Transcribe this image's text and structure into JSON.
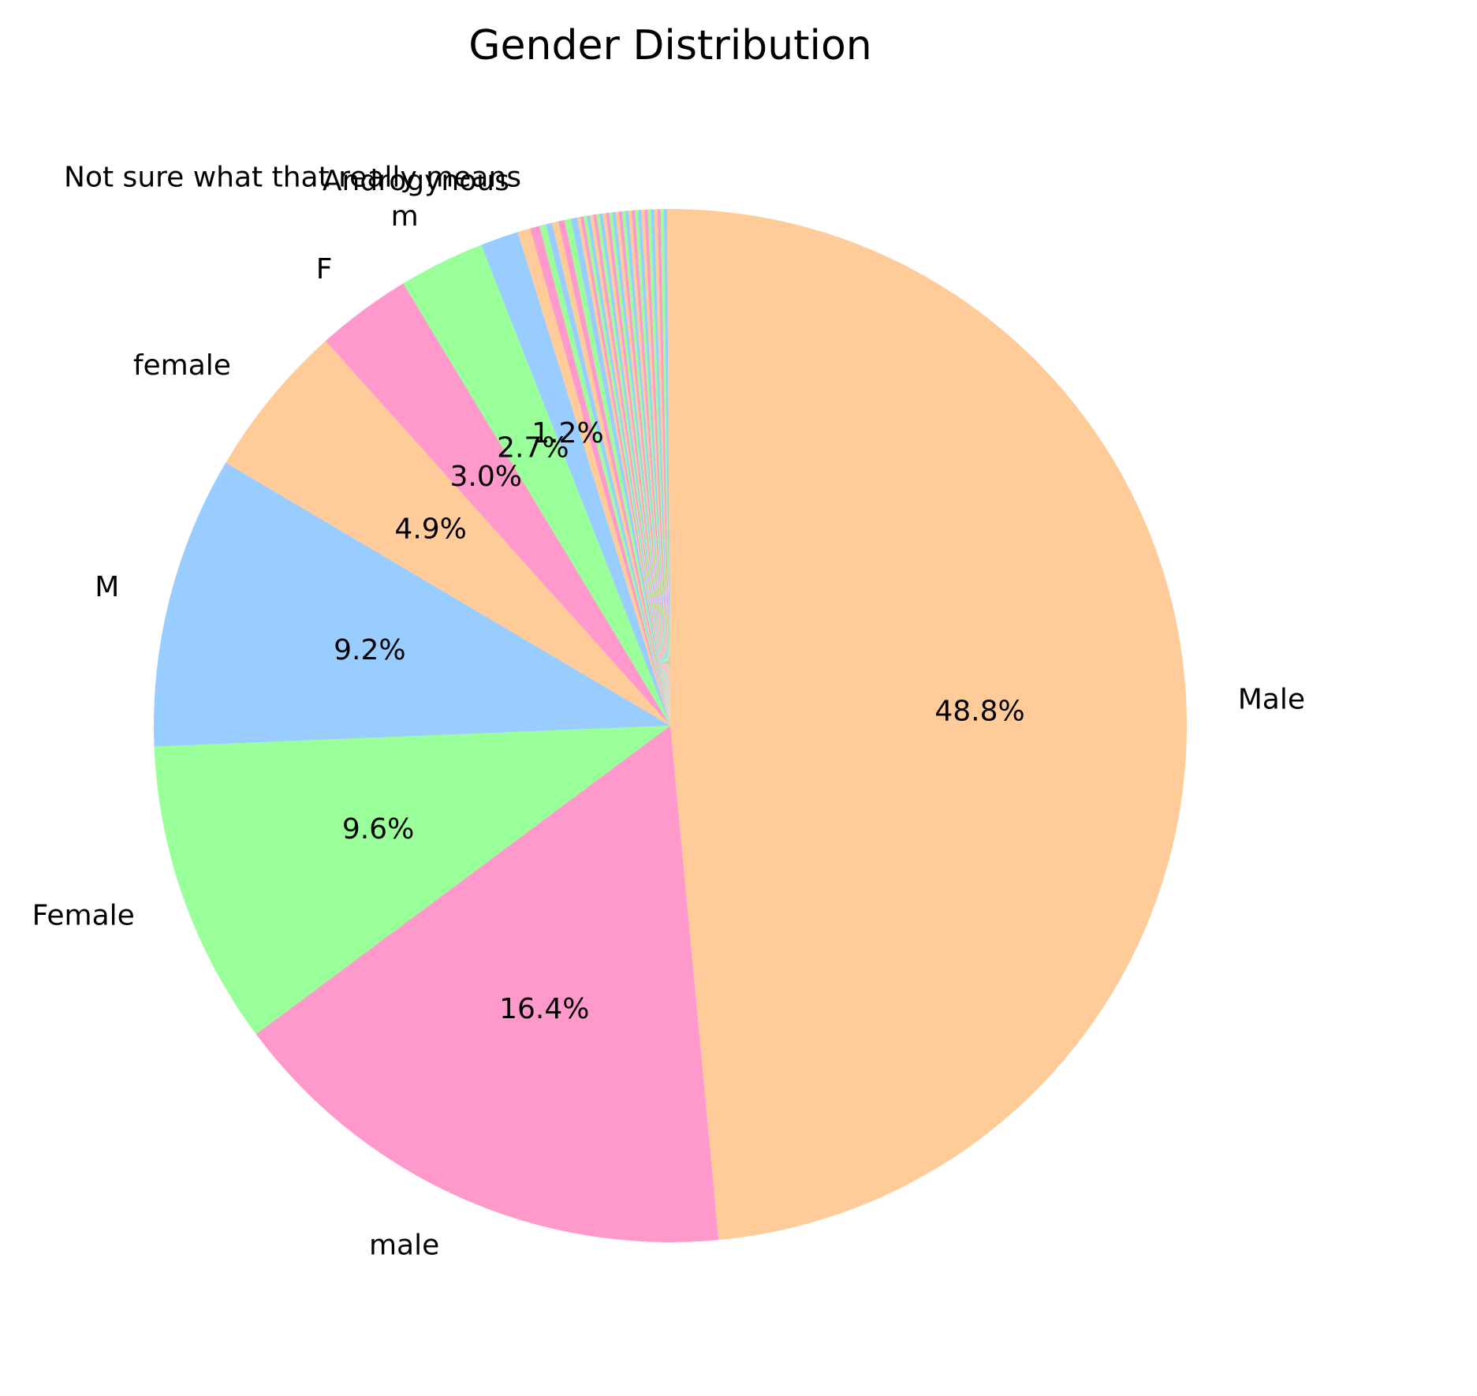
{
  "chart_data": {
    "type": "pie",
    "title": "Gender Distribution",
    "start_angle_deg": 90,
    "direction": "clockwise",
    "slices": [
      {
        "label": "Male",
        "pct": 48.8,
        "pct_label": "48.8%",
        "color": "#ffcc99"
      },
      {
        "label": "male",
        "pct": 16.4,
        "pct_label": "16.4%",
        "color": "#ff99cc"
      },
      {
        "label": "Female",
        "pct": 9.6,
        "pct_label": "9.6%",
        "color": "#99ff99"
      },
      {
        "label": "M",
        "pct": 9.2,
        "pct_label": "9.2%",
        "color": "#99ccff"
      },
      {
        "label": "female",
        "pct": 4.9,
        "pct_label": "4.9%",
        "color": "#ffcc99"
      },
      {
        "label": "F",
        "pct": 3.0,
        "pct_label": "3.0%",
        "color": "#ff99cc"
      },
      {
        "label": "m",
        "pct": 2.7,
        "pct_label": "2.7%",
        "color": "#99ff99"
      },
      {
        "label": "",
        "pct": 1.2,
        "pct_label": "1.2%",
        "color": "#99ccff"
      },
      {
        "label": "Androgynous",
        "pct": 0.4,
        "pct_label": "",
        "color": "#ffcc99"
      },
      {
        "label": "Not sure what that really means",
        "pct": 0.3,
        "pct_label": "",
        "color": "#ff99cc"
      },
      {
        "label": "",
        "pct": 0.2,
        "pct_label": "",
        "color": "#99ff99"
      },
      {
        "label": "",
        "pct": 0.2,
        "pct_label": "",
        "color": "#99ccff"
      },
      {
        "label": "",
        "pct": 0.2,
        "pct_label": "",
        "color": "#ffcc99"
      },
      {
        "label": "",
        "pct": 0.2,
        "pct_label": "",
        "color": "#ff99cc"
      },
      {
        "label": "",
        "pct": 0.2,
        "pct_label": "",
        "color": "#99ff99"
      },
      {
        "label": "",
        "pct": 0.2,
        "pct_label": "",
        "color": "#99ccff"
      },
      {
        "label": "",
        "pct": 0.1,
        "pct_label": "",
        "color": "#ffcc99"
      },
      {
        "label": "",
        "pct": 0.1,
        "pct_label": "",
        "color": "#ff99cc"
      },
      {
        "label": "",
        "pct": 0.1,
        "pct_label": "",
        "color": "#99ff99"
      },
      {
        "label": "",
        "pct": 0.1,
        "pct_label": "",
        "color": "#99ccff"
      },
      {
        "label": "",
        "pct": 0.1,
        "pct_label": "",
        "color": "#ffcc99"
      },
      {
        "label": "",
        "pct": 0.1,
        "pct_label": "",
        "color": "#ff99cc"
      },
      {
        "label": "",
        "pct": 0.1,
        "pct_label": "",
        "color": "#99ff99"
      },
      {
        "label": "",
        "pct": 0.1,
        "pct_label": "",
        "color": "#99ccff"
      },
      {
        "label": "",
        "pct": 0.1,
        "pct_label": "",
        "color": "#ffcc99"
      },
      {
        "label": "",
        "pct": 0.1,
        "pct_label": "",
        "color": "#ff99cc"
      },
      {
        "label": "",
        "pct": 0.1,
        "pct_label": "",
        "color": "#99ff99"
      },
      {
        "label": "",
        "pct": 0.1,
        "pct_label": "",
        "color": "#99ccff"
      },
      {
        "label": "",
        "pct": 0.1,
        "pct_label": "",
        "color": "#ffcc99"
      },
      {
        "label": "",
        "pct": 0.1,
        "pct_label": "",
        "color": "#ff99cc"
      },
      {
        "label": "",
        "pct": 0.1,
        "pct_label": "",
        "color": "#99ff99"
      },
      {
        "label": "",
        "pct": 0.1,
        "pct_label": "",
        "color": "#99ccff"
      },
      {
        "label": "",
        "pct": 0.1,
        "pct_label": "",
        "color": "#ffcc99"
      },
      {
        "label": "",
        "pct": 0.1,
        "pct_label": "",
        "color": "#ff99cc"
      },
      {
        "label": "",
        "pct": 0.1,
        "pct_label": "",
        "color": "#99ff99"
      },
      {
        "label": "",
        "pct": 0.1,
        "pct_label": "",
        "color": "#99ccff"
      },
      {
        "label": "",
        "pct": 0.1,
        "pct_label": "",
        "color": "#ffcc99"
      },
      {
        "label": "",
        "pct": 0.1,
        "pct_label": "",
        "color": "#ff99cc"
      },
      {
        "label": "",
        "pct": 0.1,
        "pct_label": "",
        "color": "#99ff99"
      },
      {
        "label": "",
        "pct": 0.1,
        "pct_label": "",
        "color": "#99ccff"
      },
      {
        "label": "",
        "pct": 0.1,
        "pct_label": "",
        "color": "#ffcc99"
      },
      {
        "label": "",
        "pct": 0.1,
        "pct_label": "",
        "color": "#ff99cc"
      },
      {
        "label": "",
        "pct": 0.1,
        "pct_label": "",
        "color": "#99ff99"
      },
      {
        "label": "",
        "pct": 0.1,
        "pct_label": "",
        "color": "#99ccff"
      },
      {
        "label": "",
        "pct": 0.1,
        "pct_label": "",
        "color": "#ffcc99"
      }
    ]
  }
}
